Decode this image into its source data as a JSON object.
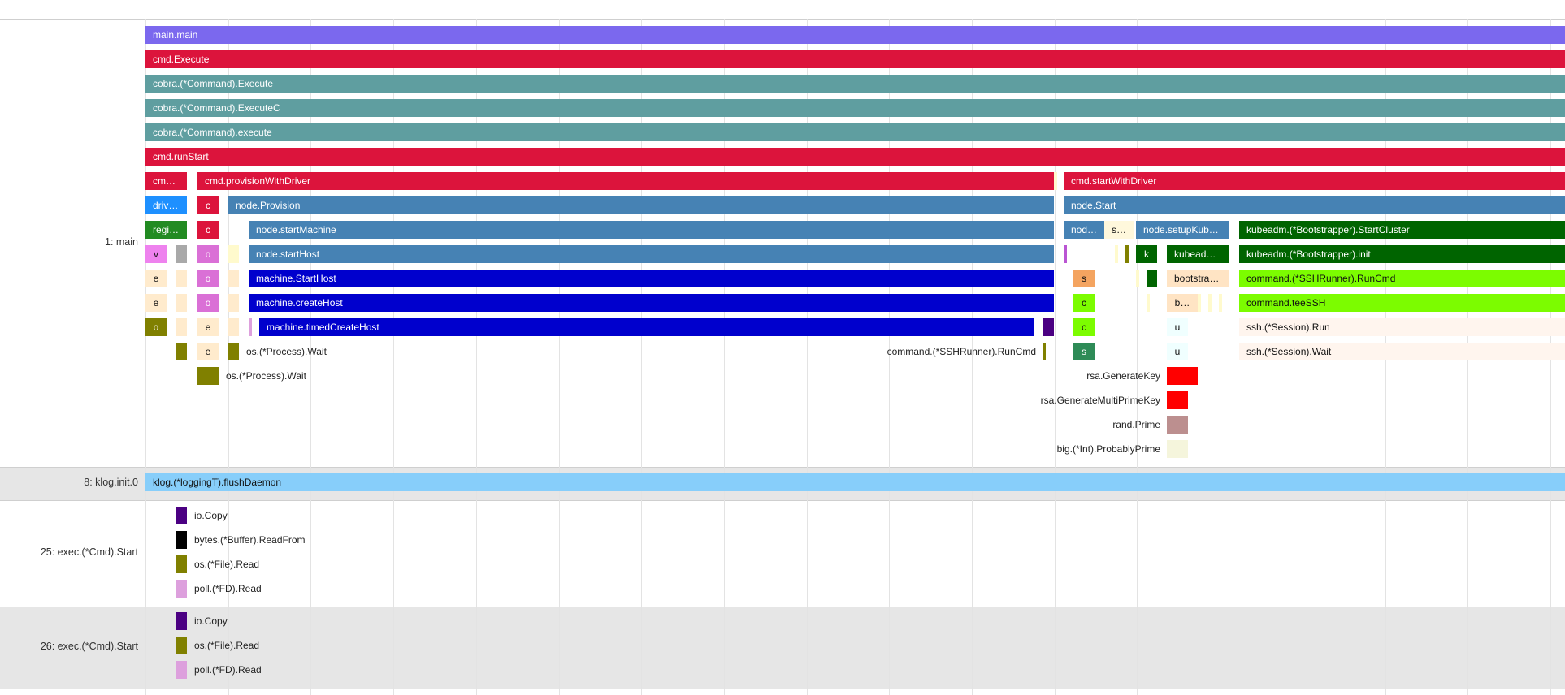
{
  "groups": [
    {
      "label": "1: main"
    },
    {
      "label": "8: klog.init.0"
    },
    {
      "label": "25: exec.(*Cmd).Start"
    },
    {
      "label": "26: exec.(*Cmd).Start"
    }
  ],
  "spans": [
    {
      "label": "main.main",
      "color": "#7b68ee"
    },
    {
      "label": "cmd.Execute",
      "color": "#dc143c"
    },
    {
      "label": "cobra.(*Command).Execute",
      "color": "#5f9ea0"
    },
    {
      "label": "cobra.(*Command).ExecuteC",
      "color": "#5f9ea0"
    },
    {
      "label": "cobra.(*Command).execute",
      "color": "#5f9ea0"
    },
    {
      "label": "cmd.runStart",
      "color": "#dc143c"
    },
    {
      "label": "cm…",
      "color": "#dc143c"
    },
    {
      "label": "cmd.provisionWithDriver",
      "color": "#dc143c"
    },
    {
      "label": "cmd.startWithDriver",
      "color": "#dc143c"
    },
    {
      "label": "driv…",
      "color": "#1e90ff"
    },
    {
      "label": "c",
      "color": "#dc143c"
    },
    {
      "label": "node.Provision",
      "color": "#4682b4"
    },
    {
      "label": "node.Start",
      "color": "#4682b4"
    },
    {
      "label": "regi…",
      "color": "#228b22"
    },
    {
      "label": "c",
      "color": "#dc143c"
    },
    {
      "label": "node.startMachine",
      "color": "#4682b4"
    },
    {
      "label": "nod…",
      "color": "#4682b4"
    },
    {
      "label": "s…",
      "color": "#fff8dc"
    },
    {
      "label": "node.setupKub…",
      "color": "#4682b4"
    },
    {
      "label": "kubeadm.(*Bootstrapper).StartCluster",
      "color": "#006400"
    },
    {
      "label": "v",
      "color": "#ee82ee"
    },
    {
      "label": "o",
      "color": "#da70d6"
    },
    {
      "label": "node.startHost",
      "color": "#4682b4"
    },
    {
      "label": "k",
      "color": "#006400"
    },
    {
      "label": "kubead…",
      "color": "#006400"
    },
    {
      "label": "kubeadm.(*Bootstrapper).init",
      "color": "#006400"
    },
    {
      "label": "e",
      "color": "#ffebcd"
    },
    {
      "label": "o",
      "color": "#da70d6"
    },
    {
      "label": "machine.StartHost",
      "color": "#0000cd"
    },
    {
      "label": "s",
      "color": "#f4a460"
    },
    {
      "label": "bootstra…",
      "color": "#ffe4c4"
    },
    {
      "label": "command.(*SSHRunner).RunCmd",
      "color": "#7cfc00"
    },
    {
      "label": "e",
      "color": "#ffebcd"
    },
    {
      "label": "o",
      "color": "#da70d6"
    },
    {
      "label": "machine.createHost",
      "color": "#0000cd"
    },
    {
      "label": "c",
      "color": "#7cfc00"
    },
    {
      "label": "b…",
      "color": "#ffe4c4"
    },
    {
      "label": "command.teeSSH",
      "color": "#7cfc00"
    },
    {
      "label": "o",
      "color": "#808000"
    },
    {
      "label": "e",
      "color": "#ffebcd"
    },
    {
      "label": "machine.timedCreateHost",
      "color": "#0000cd"
    },
    {
      "label": "c",
      "color": "#7cfc00"
    },
    {
      "label": "u",
      "color": "#f0ffff"
    },
    {
      "label": "ssh.(*Session).Run",
      "color": "#fff5ee"
    },
    {
      "label": "e",
      "color": "#ffebcd"
    },
    {
      "label": "s",
      "color": "#2e8b57"
    },
    {
      "label": "u",
      "color": "#f0ffff"
    },
    {
      "label": "ssh.(*Session).Wait",
      "color": "#fff5ee"
    },
    {
      "label": "klog.(*loggingT).flushDaemon",
      "color": "#87cefa"
    }
  ],
  "annotations": [
    {
      "label": "os.(*Process).Wait"
    },
    {
      "label": "command.(*SSHRunner).RunCmd"
    },
    {
      "label": "os.(*Process).Wait"
    },
    {
      "label": "rsa.GenerateKey"
    },
    {
      "label": "rsa.GenerateMultiPrimeKey"
    },
    {
      "label": "rand.Prime"
    },
    {
      "label": "big.(*Int).ProbablyPrime"
    },
    {
      "label": "io.Copy"
    },
    {
      "label": "bytes.(*Buffer).ReadFrom"
    },
    {
      "label": "os.(*File).Read"
    },
    {
      "label": "poll.(*FD).Read"
    },
    {
      "label": "io.Copy"
    },
    {
      "label": "os.(*File).Read"
    },
    {
      "label": "poll.(*FD).Read"
    }
  ],
  "palette": {
    "olive": "#808000",
    "gray": "#a9a9a9",
    "bisque": "#ffebcd",
    "lemon": "#fffacd",
    "plum": "#dda0dd",
    "beige": "#f5f5dc",
    "red": "#ff0000",
    "rosybrown": "#bc8f8f",
    "indigo": "#4b0082",
    "black": "#000000",
    "darkgreen": "#006400",
    "purple": "#ba55d3"
  }
}
